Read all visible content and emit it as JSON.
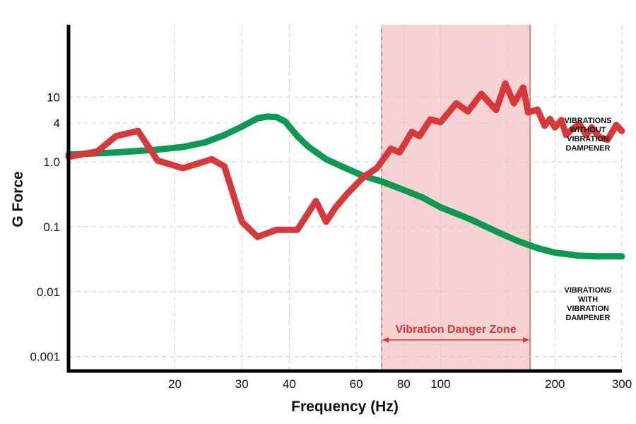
{
  "chart_data": {
    "type": "line",
    "xlabel": "Frequency (Hz)",
    "ylabel": "G Force",
    "x_scale": "log",
    "y_scale": "log",
    "xlim": [
      10.5,
      300
    ],
    "ylim": [
      0.0006,
      130
    ],
    "x_ticks": [
      {
        "value": 20,
        "label": "20"
      },
      {
        "value": 30,
        "label": "30"
      },
      {
        "value": 40,
        "label": "40"
      },
      {
        "value": 60,
        "label": "60"
      },
      {
        "value": 80,
        "label": "80"
      },
      {
        "value": 100,
        "label": "100"
      },
      {
        "value": 200,
        "label": "200"
      },
      {
        "value": 300,
        "label": "300"
      }
    ],
    "y_ticks": [
      {
        "value": 0.001,
        "label": "0.001"
      },
      {
        "value": 0.01,
        "label": "0.01"
      },
      {
        "value": 0.1,
        "label": "0.1"
      },
      {
        "value": 1.0,
        "label": "1.0"
      },
      {
        "value": 4,
        "label": "4"
      },
      {
        "value": 10,
        "label": "10"
      }
    ],
    "x_grid": [
      20,
      30,
      40,
      60,
      70,
      80,
      100,
      150,
      200,
      300
    ],
    "y_grid": [
      0.001,
      0.01,
      0.1,
      1,
      4,
      10
    ],
    "grid": true,
    "danger_zone": {
      "x_start": 70,
      "x_end": 172,
      "label": "Vibration Danger Zone",
      "color": "#f6d3d2",
      "line_color": "#d9383a"
    },
    "series": [
      {
        "name": "VIBRATIONS WITHOUT VIBRATION DAMPENER",
        "label_lines": [
          "VIBRATIONS",
          "WITHOUT",
          "VIBRATION",
          "DAMPENER"
        ],
        "color": "#d9383a",
        "x": [
          10.5,
          12.5,
          14,
          16,
          18,
          21,
          25,
          27,
          30,
          33,
          37,
          42,
          47,
          50,
          53,
          57,
          63,
          68,
          74,
          78,
          84,
          88,
          94,
          100,
          110,
          118,
          128,
          140,
          148,
          156,
          165,
          170,
          180,
          188,
          194,
          200,
          208,
          214,
          222,
          232,
          242,
          250,
          262,
          275,
          290,
          300
        ],
        "y": [
          1.2,
          1.45,
          2.5,
          3.0,
          1.05,
          0.8,
          1.1,
          0.85,
          0.12,
          0.07,
          0.09,
          0.09,
          0.25,
          0.12,
          0.2,
          0.33,
          0.6,
          0.8,
          1.6,
          1.4,
          2.9,
          2.5,
          4.5,
          4.1,
          8.0,
          6.0,
          11.2,
          6.3,
          16.2,
          8.0,
          14.0,
          5.8,
          6.4,
          3.6,
          4.6,
          3.4,
          4.4,
          2.6,
          3.2,
          3.8,
          2.6,
          3.4,
          2.4,
          2.2,
          3.7,
          3.0
        ]
      },
      {
        "name": "VIBRATIONS WITH VIBRATION DAMPENER",
        "label_lines": [
          "VIBRATIONS",
          "WITH",
          "VIBRATION",
          "DAMPENER"
        ],
        "color": "#0a9a52",
        "x": [
          10.5,
          14,
          18,
          21,
          24,
          27,
          30,
          33,
          35,
          37,
          39,
          42,
          45,
          50,
          55,
          63,
          70,
          80,
          90,
          100,
          120,
          140,
          160,
          180,
          200,
          230,
          260,
          300
        ],
        "y": [
          1.3,
          1.4,
          1.55,
          1.7,
          2.0,
          2.6,
          3.5,
          4.7,
          5.0,
          4.9,
          4.2,
          2.5,
          1.7,
          1.1,
          0.85,
          0.6,
          0.5,
          0.37,
          0.28,
          0.2,
          0.13,
          0.085,
          0.06,
          0.047,
          0.04,
          0.036,
          0.035,
          0.035
        ]
      }
    ]
  }
}
